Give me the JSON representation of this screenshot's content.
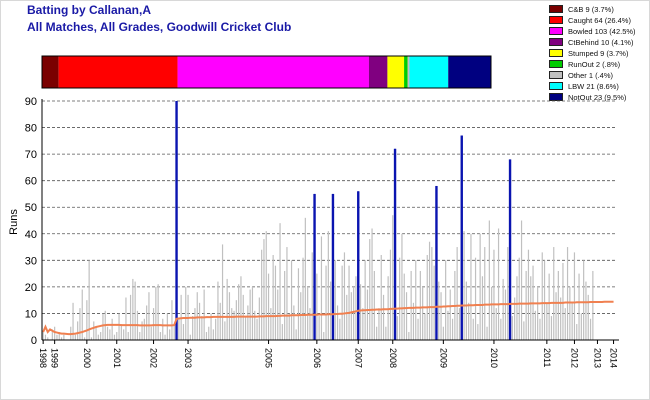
{
  "title": "Batting by Callanan,A",
  "subtitle": "All Matches, All Grades, Goodwill Cricket Club",
  "dismissals": [
    {
      "label": "C&B 9 (3.7%)",
      "pct": 3.7,
      "color": "#7a0000"
    },
    {
      "label": "Caught 64 (26.4%)",
      "pct": 26.4,
      "color": "#ff0000"
    },
    {
      "label": "Bowled 103 (42.5%)",
      "pct": 42.5,
      "color": "#ff00ff"
    },
    {
      "label": "CtBehind 10 (4.1%)",
      "pct": 4.1,
      "color": "#800080"
    },
    {
      "label": "Stumped 9 (3.7%)",
      "pct": 3.7,
      "color": "#ffff00"
    },
    {
      "label": "RunOut 2 (.8%)",
      "pct": 0.8,
      "color": "#00cc00"
    },
    {
      "label": "Other 1 (.4%)",
      "pct": 0.4,
      "color": "#c0c0c0"
    },
    {
      "label": "LBW 21 (8.6%)",
      "pct": 8.6,
      "color": "#00ffff"
    },
    {
      "label": "NotOut 23 (9.5%)",
      "pct": 9.5,
      "color": "#000080"
    }
  ],
  "chart_data": {
    "type": "bar",
    "ylabel": "Runs",
    "ylim": [
      0,
      90
    ],
    "yticks": [
      0,
      10,
      20,
      30,
      40,
      50,
      60,
      70,
      80,
      90
    ],
    "grid": "horizontal dashed",
    "x_tick_labels": [
      "1998",
      "1999",
      "2000",
      "2001",
      "2002",
      "2003",
      "2005",
      "2006",
      "2007",
      "2008",
      "2009",
      "2010",
      "2011",
      "2012",
      "2013",
      "2014"
    ],
    "x_tick_positions": [
      0.0,
      5.0,
      19.0,
      32.0,
      48.0,
      63.0,
      98.0,
      119.0,
      137.0,
      152.0,
      174.0,
      196.0,
      219.0,
      231.0,
      241.0,
      248.0
    ],
    "innings_count": 250,
    "highlight_innings": [
      {
        "innings": 58,
        "runs": 90
      },
      {
        "innings": 118,
        "runs": 55
      },
      {
        "innings": 126,
        "runs": 55
      },
      {
        "innings": 137,
        "runs": 56
      },
      {
        "innings": 153,
        "runs": 72
      },
      {
        "innings": 171,
        "runs": 58
      },
      {
        "innings": 182,
        "runs": 77
      },
      {
        "innings": 203,
        "runs": 68
      }
    ],
    "innings_runs": [
      3,
      2,
      1,
      0,
      4,
      5,
      2,
      3,
      1,
      2,
      0,
      0,
      5,
      14,
      2,
      7,
      12,
      19,
      1,
      15,
      30,
      1,
      7,
      5,
      2,
      3,
      10,
      11,
      5,
      4,
      8,
      2,
      3,
      10,
      6,
      4,
      16,
      3,
      17,
      23,
      22,
      11,
      3,
      7,
      8,
      13,
      18,
      5,
      12,
      20,
      21,
      3,
      8,
      2,
      10,
      4,
      15,
      6,
      10,
      8,
      17,
      6,
      20,
      17,
      2,
      9,
      12,
      18,
      14,
      9,
      19,
      3,
      5,
      10,
      4,
      8,
      22,
      14,
      36,
      7,
      23,
      18,
      12,
      11,
      15,
      21,
      24,
      17,
      9,
      13,
      19,
      20,
      11,
      8,
      16,
      34,
      38,
      41,
      25,
      12,
      32,
      28,
      19,
      44,
      6,
      26,
      35,
      10,
      30,
      13,
      4,
      27,
      18,
      31,
      46,
      20,
      12,
      33,
      36,
      25,
      9,
      39,
      3,
      28,
      41,
      22,
      15,
      30,
      13,
      8,
      28,
      33,
      17,
      28,
      18,
      20,
      24,
      8,
      21,
      12,
      30,
      19,
      38,
      42,
      26,
      5,
      12,
      32,
      17,
      5,
      24,
      34,
      47,
      22,
      9,
      31,
      40,
      25,
      18,
      3,
      26,
      14,
      30,
      8,
      26,
      20,
      10,
      32,
      37,
      35,
      28,
      16,
      22,
      18,
      5,
      30,
      11,
      19,
      8,
      26,
      35,
      12,
      44,
      41,
      22,
      14,
      40,
      8,
      31,
      6,
      40,
      24,
      35,
      5,
      45,
      20,
      34,
      12,
      42,
      8,
      23,
      19,
      35,
      25,
      9,
      16,
      24,
      31,
      45,
      7,
      26,
      34,
      24,
      28,
      11,
      20,
      8,
      33,
      30,
      14,
      25,
      9,
      35,
      18,
      26,
      16,
      29,
      12,
      35,
      20,
      14,
      33,
      6,
      25,
      10,
      30,
      22,
      17,
      8,
      26
    ],
    "average_series": {
      "name": "average",
      "values": [
        3.0,
        5.0,
        3.0,
        4.0,
        3.5,
        3.0,
        2.8,
        2.6,
        2.4,
        2.4,
        2.3,
        2.2,
        2.2,
        2.3,
        2.4,
        2.6,
        2.8,
        3.0,
        3.3,
        3.6,
        4.0,
        4.3,
        4.6,
        4.9,
        5.1,
        5.3,
        5.5,
        5.6,
        5.7,
        5.7,
        5.7,
        5.7,
        5.7,
        5.7,
        5.6,
        5.6,
        5.6,
        5.6,
        5.6,
        5.6,
        5.6,
        5.6,
        5.5,
        5.5,
        5.5,
        5.5,
        5.5,
        5.5,
        5.6,
        5.6,
        5.6,
        5.6,
        5.5,
        5.5,
        5.5,
        5.5,
        5.5,
        5.6,
        8.0,
        8.1,
        8.2,
        8.3,
        8.3,
        8.3,
        8.4,
        8.4,
        8.4,
        8.5,
        8.5,
        8.5,
        8.5,
        8.6,
        8.6,
        8.6,
        8.7,
        8.7,
        8.7,
        8.7,
        8.7,
        8.7,
        8.7,
        8.7,
        8.7,
        8.7,
        8.8,
        8.8,
        8.8,
        8.8,
        8.8,
        8.8,
        8.8,
        8.8,
        8.8,
        8.8,
        8.9,
        8.9,
        8.9,
        9.0,
        9.0,
        9.0,
        9.0,
        9.0,
        9.1,
        9.1,
        9.2,
        9.2,
        9.2,
        9.2,
        9.3,
        9.3,
        9.3,
        9.3,
        9.4,
        9.4,
        9.4,
        9.5,
        9.5,
        9.5,
        9.5,
        9.5,
        9.6,
        9.6,
        9.6,
        9.6,
        9.7,
        9.7,
        9.7,
        9.8,
        9.8,
        9.9,
        9.9,
        10.0,
        10.1,
        10.2,
        10.4,
        10.6,
        10.8,
        11.0,
        11.1,
        11.2,
        11.2,
        11.3,
        11.3,
        11.4,
        11.4,
        11.5,
        11.5,
        11.5,
        11.6,
        11.6,
        11.6,
        11.7,
        11.7,
        11.8,
        11.8,
        11.9,
        11.9,
        12.0,
        12.0,
        12.1,
        12.1,
        12.1,
        12.2,
        12.2,
        12.2,
        12.3,
        12.3,
        12.3,
        12.4,
        12.4,
        12.4,
        12.5,
        12.5,
        12.5,
        12.6,
        12.6,
        12.7,
        12.7,
        12.8,
        12.8,
        12.9,
        12.9,
        13.0,
        13.0,
        13.0,
        13.1,
        13.1,
        13.1,
        13.2,
        13.2,
        13.2,
        13.2,
        13.3,
        13.3,
        13.3,
        13.4,
        13.4,
        13.4,
        13.4,
        13.5,
        13.5,
        13.5,
        13.5,
        13.6,
        13.6,
        13.6,
        13.6,
        13.7,
        13.7,
        13.7,
        13.7,
        13.7,
        13.8,
        13.8,
        13.8,
        13.8,
        13.8,
        13.9,
        13.9,
        13.9,
        13.9,
        14.0,
        14.0,
        14.0,
        14.0,
        14.0,
        14.0,
        14.1,
        14.1,
        14.1,
        14.1,
        14.1,
        14.2,
        14.2,
        14.2,
        14.2,
        14.2,
        14.2,
        14.3,
        14.3,
        14.3,
        14.3,
        14.3,
        14.3,
        14.4,
        14.4,
        14.4,
        14.4,
        14.4
      ]
    },
    "colors": {
      "bars": "#c0c0c0",
      "highlight": "#0a14b0",
      "average": "#f08050"
    }
  }
}
